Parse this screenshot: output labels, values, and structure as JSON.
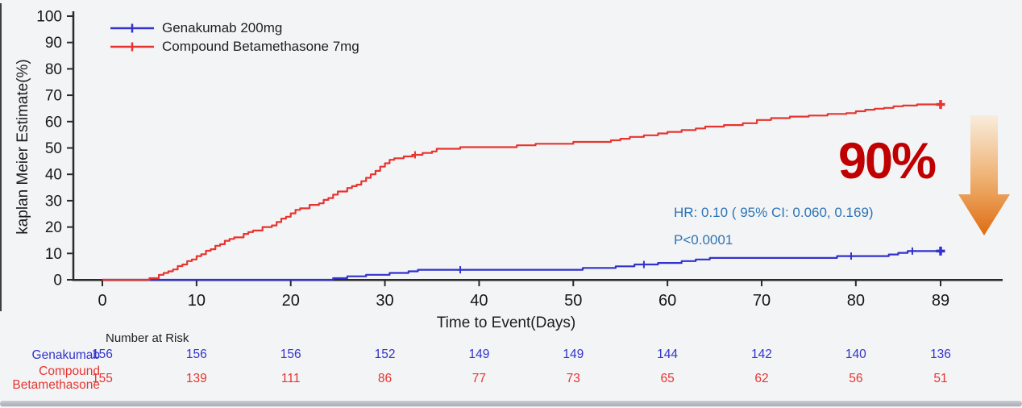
{
  "colors": {
    "genakumab": "#3232cc",
    "betamethasone": "#e63530",
    "hr_text": "#2e74b5",
    "reduction_text": "#c00000",
    "arrow_top": "#f9ecdd",
    "arrow_mid": "#eeae6c",
    "arrow_bottom": "#de6c12",
    "axis": "#2a2a2a"
  },
  "annotations": {
    "hr_line": "HR:  0.10  ( 95% CI:  0.060, 0.169)",
    "p_line": "P<0.0001",
    "reduction": "90%"
  },
  "risk_table": {
    "header": "Number at Risk",
    "columns": [
      0,
      10,
      20,
      30,
      40,
      50,
      60,
      70,
      80,
      89
    ],
    "rows": [
      {
        "label": "Genakumab",
        "color": "#3232cc",
        "values": [
          156,
          156,
          156,
          152,
          149,
          149,
          144,
          142,
          140,
          136
        ]
      },
      {
        "label": "Compound\nBetamethasone",
        "color": "#e63530",
        "values": [
          155,
          139,
          111,
          86,
          77,
          73,
          65,
          62,
          56,
          51
        ]
      }
    ]
  },
  "chart_data": {
    "type": "line",
    "subtype": "kaplan-meier-step",
    "title": "",
    "xlabel": "Time to Event(Days)",
    "ylabel": "kaplan Meier Estimate(%)",
    "xlim": [
      0,
      89
    ],
    "ylim": [
      0,
      100
    ],
    "x_ticks": [
      0,
      10,
      20,
      30,
      40,
      50,
      60,
      70,
      80,
      89
    ],
    "y_ticks": [
      0,
      10,
      20,
      30,
      40,
      50,
      60,
      70,
      80,
      90,
      100
    ],
    "grid": false,
    "legend_position": "top-left",
    "series": [
      {
        "name": "Genakumab 200mg",
        "color": "#3232cc",
        "steps": [
          [
            0,
            0
          ],
          [
            24.5,
            0.6
          ],
          [
            26,
            1.3
          ],
          [
            28,
            1.9
          ],
          [
            30.5,
            2.6
          ],
          [
            32.5,
            3.2
          ],
          [
            33.5,
            3.8
          ],
          [
            51,
            4.5
          ],
          [
            54.5,
            5.1
          ],
          [
            56.5,
            5.8
          ],
          [
            59,
            6.4
          ],
          [
            61.5,
            7.1
          ],
          [
            63,
            7.7
          ],
          [
            64.5,
            8.3
          ],
          [
            78,
            9.0
          ],
          [
            83.5,
            9.6
          ],
          [
            84.5,
            10.2
          ],
          [
            85.5,
            10.9
          ]
        ],
        "censors": [
          [
            38,
            3.8
          ],
          [
            57.5,
            5.8
          ],
          [
            79.5,
            9.0
          ],
          [
            86,
            10.9
          ]
        ],
        "end": [
          89,
          10.9
        ]
      },
      {
        "name": "Compound Betamethasone 7mg",
        "color": "#e63530",
        "steps": [
          [
            0,
            0
          ],
          [
            5,
            0.6
          ],
          [
            6,
            1.9
          ],
          [
            6.5,
            2.6
          ],
          [
            7,
            3.2
          ],
          [
            7.5,
            3.9
          ],
          [
            8,
            5.2
          ],
          [
            8.5,
            5.8
          ],
          [
            9,
            7.1
          ],
          [
            9.5,
            7.7
          ],
          [
            10,
            9.0
          ],
          [
            10.5,
            9.7
          ],
          [
            11,
            11.0
          ],
          [
            11.5,
            11.6
          ],
          [
            12,
            12.9
          ],
          [
            12.5,
            13.5
          ],
          [
            13,
            14.8
          ],
          [
            13.5,
            15.5
          ],
          [
            14,
            16.1
          ],
          [
            15,
            17.4
          ],
          [
            15.5,
            18.1
          ],
          [
            16,
            18.7
          ],
          [
            17,
            20.0
          ],
          [
            18,
            20.6
          ],
          [
            18.5,
            21.9
          ],
          [
            19,
            23.2
          ],
          [
            19.5,
            23.9
          ],
          [
            20,
            25.2
          ],
          [
            20.5,
            26.5
          ],
          [
            21,
            27.1
          ],
          [
            22,
            28.4
          ],
          [
            23,
            29.0
          ],
          [
            23.5,
            30.3
          ],
          [
            24,
            31.0
          ],
          [
            24.5,
            32.3
          ],
          [
            25,
            33.5
          ],
          [
            26,
            34.8
          ],
          [
            26.5,
            35.5
          ],
          [
            27,
            36.1
          ],
          [
            27.5,
            37.4
          ],
          [
            28,
            38.7
          ],
          [
            28.5,
            40.0
          ],
          [
            29,
            41.3
          ],
          [
            29.5,
            42.9
          ],
          [
            30,
            44.2
          ],
          [
            30.5,
            45.5
          ],
          [
            31,
            46.1
          ],
          [
            32,
            46.8
          ],
          [
            33,
            47.4
          ],
          [
            34,
            48.1
          ],
          [
            35,
            48.7
          ],
          [
            35.5,
            49.7
          ],
          [
            38,
            50.3
          ],
          [
            44,
            51.0
          ],
          [
            46,
            51.6
          ],
          [
            50,
            52.3
          ],
          [
            54,
            52.9
          ],
          [
            55,
            53.5
          ],
          [
            56,
            54.2
          ],
          [
            57.5,
            54.8
          ],
          [
            59,
            55.5
          ],
          [
            60,
            56.1
          ],
          [
            61.5,
            56.8
          ],
          [
            63,
            57.4
          ],
          [
            64,
            58.1
          ],
          [
            66,
            58.7
          ],
          [
            68,
            59.4
          ],
          [
            69.5,
            60.6
          ],
          [
            71,
            61.3
          ],
          [
            73,
            61.9
          ],
          [
            75,
            62.3
          ],
          [
            77,
            62.9
          ],
          [
            79,
            63.2
          ],
          [
            80,
            63.9
          ],
          [
            81,
            64.5
          ],
          [
            82,
            64.9
          ],
          [
            83,
            65.2
          ],
          [
            84,
            65.8
          ],
          [
            85,
            66.1
          ],
          [
            86.5,
            66.5
          ]
        ],
        "censors": [
          [
            33.2,
            47.4
          ]
        ],
        "end": [
          89,
          66.5
        ]
      }
    ]
  }
}
